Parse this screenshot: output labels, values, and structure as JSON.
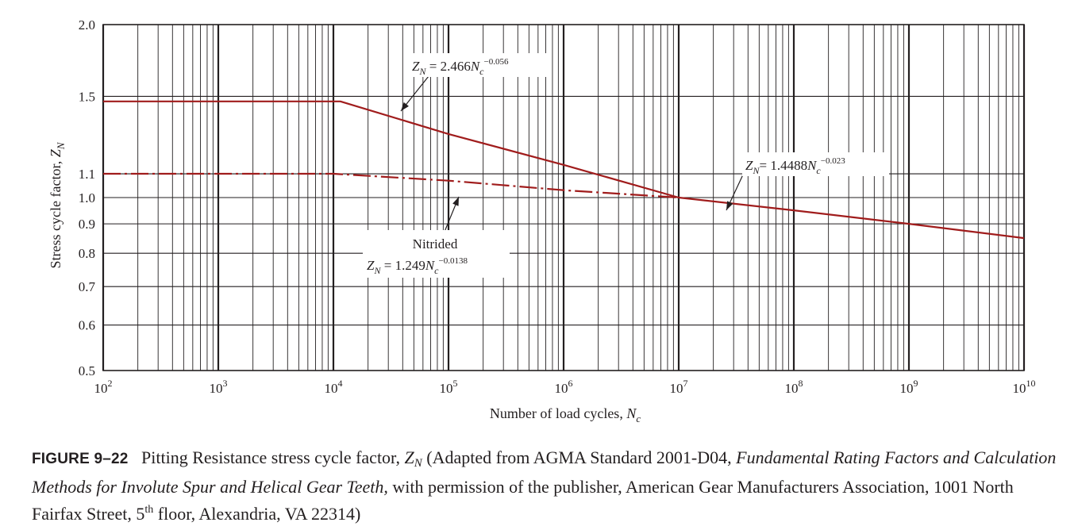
{
  "chart_data": {
    "type": "line",
    "xscale": "log",
    "yscale": "log",
    "xlim": [
      100,
      10000000000
    ],
    "ylim": [
      0.5,
      2.0
    ],
    "grid": true,
    "x_ticks": [
      {
        "value": 100,
        "base": "10",
        "exp": "2"
      },
      {
        "value": 1000,
        "base": "10",
        "exp": "3"
      },
      {
        "value": 10000,
        "base": "10",
        "exp": "4"
      },
      {
        "value": 100000,
        "base": "10",
        "exp": "5"
      },
      {
        "value": 1000000,
        "base": "10",
        "exp": "6"
      },
      {
        "value": 10000000,
        "base": "10",
        "exp": "7"
      },
      {
        "value": 100000000,
        "base": "10",
        "exp": "8"
      },
      {
        "value": 1000000000,
        "base": "10",
        "exp": "9"
      },
      {
        "value": 10000000000,
        "base": "10",
        "exp": "10"
      }
    ],
    "y_ticks": [
      {
        "value": 0.5,
        "label": "0.5"
      },
      {
        "value": 0.6,
        "label": "0.6"
      },
      {
        "value": 0.7,
        "label": "0.7"
      },
      {
        "value": 0.8,
        "label": "0.8"
      },
      {
        "value": 0.9,
        "label": "0.9"
      },
      {
        "value": 1.0,
        "label": "1.0"
      },
      {
        "value": 1.1,
        "label": "1.1"
      },
      {
        "value": 1.5,
        "label": "1.5"
      },
      {
        "value": 2.0,
        "label": "2.0"
      }
    ],
    "xlabel": {
      "text": "Number of load cycles, ",
      "symbol": "N",
      "sub": "c"
    },
    "ylabel": {
      "text": "Stress cycle factor, ",
      "symbol": "Z",
      "sub": "N"
    },
    "series": [
      {
        "style": "solid",
        "color": "#a01c1c",
        "points": [
          [
            100,
            1.47
          ],
          [
            11500,
            1.47
          ],
          [
            100000,
            1.29
          ],
          [
            1000000,
            1.14
          ],
          [
            10000000,
            1.0
          ],
          [
            100000000,
            0.95
          ],
          [
            1000000000,
            0.9
          ],
          [
            10000000000,
            0.85
          ]
        ]
      },
      {
        "style": "dash-dot",
        "color": "#a01c1c",
        "points": [
          [
            100,
            1.1
          ],
          [
            10000,
            1.1
          ],
          [
            100000,
            1.07
          ],
          [
            1000000,
            1.03
          ],
          [
            10000000,
            1.0
          ]
        ]
      }
    ],
    "annotations": [
      {
        "lines": [
          {
            "symbol": "Z",
            "sub": "N",
            "rest": " = 2.466",
            "sym2": "N",
            "sub2": "c",
            "sup": "−0.056"
          }
        ]
      },
      {
        "lines": [
          {
            "symbol": "Z",
            "sub": "N",
            "rest": "= 1.4488",
            "sym2": "N",
            "sub2": "c",
            "sup": "−0.023"
          }
        ]
      },
      {
        "title": "Nitrided",
        "lines": [
          {
            "symbol": "Z",
            "sub": "N",
            "rest": " = 1.249",
            "sym2": "N",
            "sub2": "c",
            "sup": "−0.0138"
          }
        ]
      }
    ]
  },
  "caption": {
    "label": "FIGURE 9–22",
    "text1": "Pitting Resistance stress cycle factor, ",
    "symbol": "Z",
    "symbol_sub": "N",
    "text2": " (Adapted from AGMA Standard 2001-D04, ",
    "title_italic": "Fundamental Rating Factors and Calculation Methods for Involute Spur and Helical Gear Teeth,",
    "text3": " with permission of the publisher, American Gear Manufacturers Association, 1001 North Fairfax Street, 5",
    "sup": "th",
    "text4": " floor, Alexandria, VA 22314)"
  }
}
